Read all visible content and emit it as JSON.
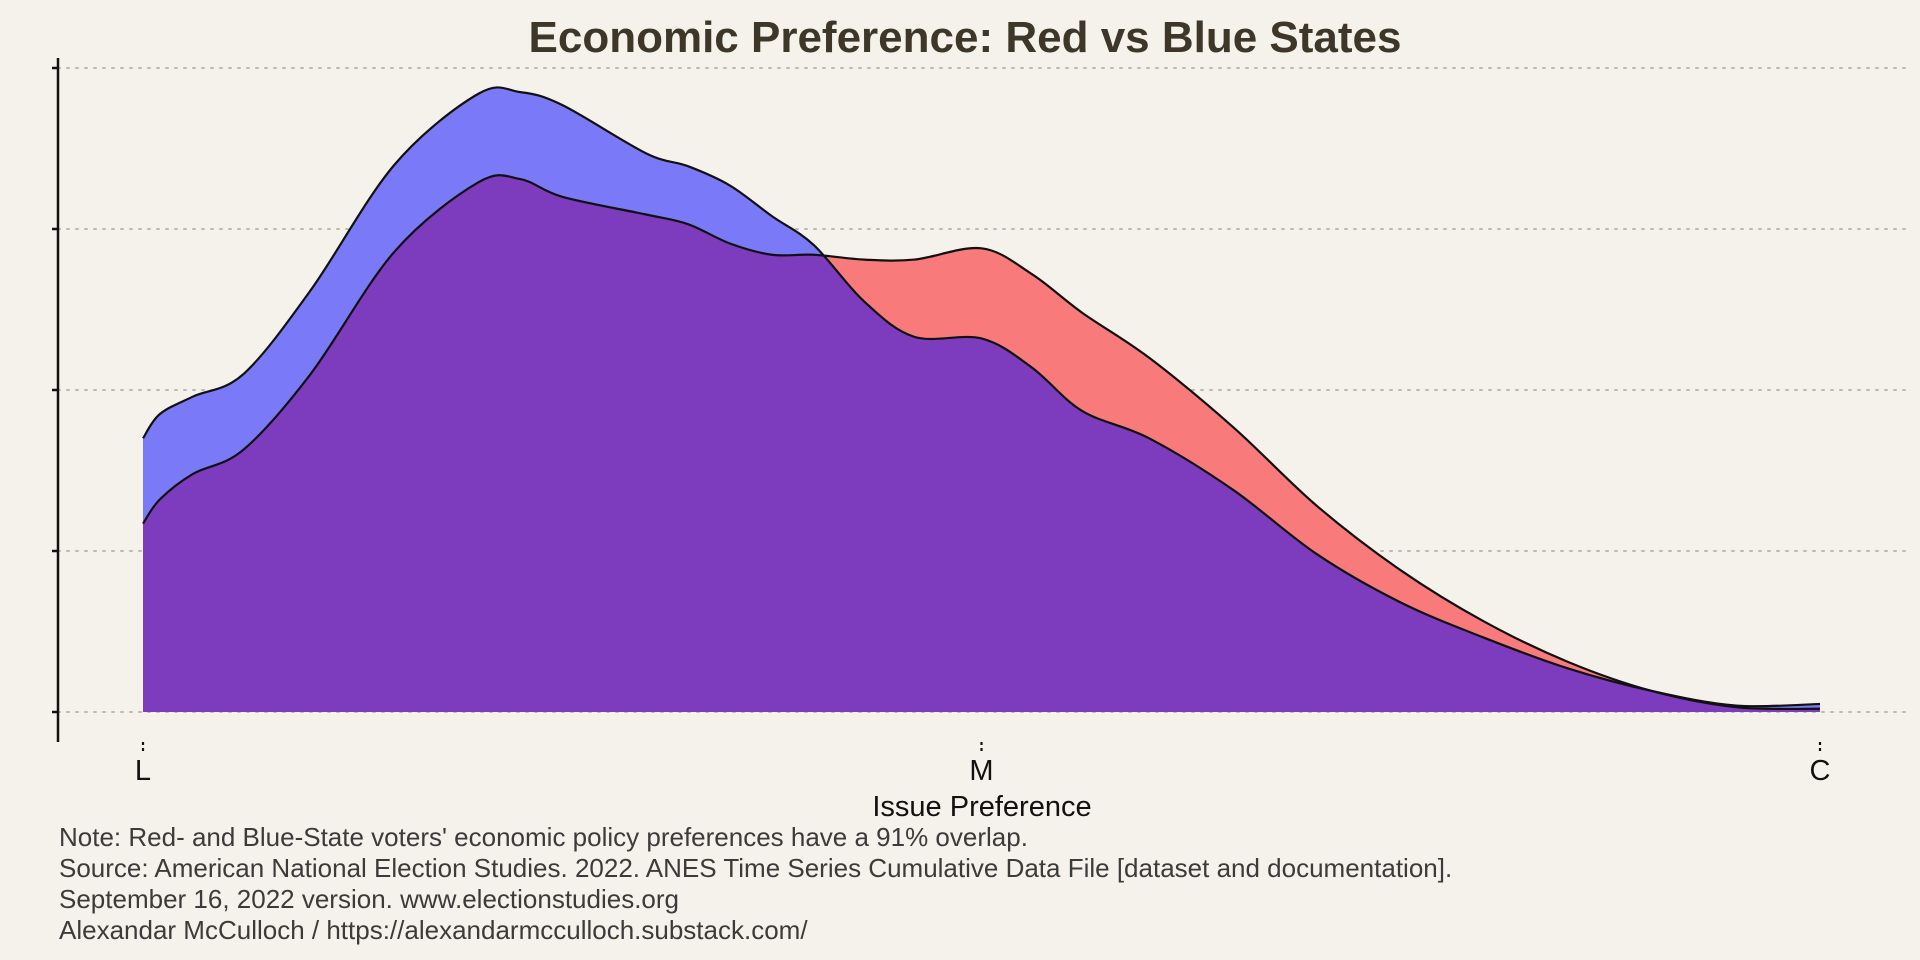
{
  "chart_data": {
    "type": "area",
    "title": "Economic Preference: Red vs Blue States",
    "xlabel": "Issue Preference",
    "ylabel": "",
    "x_tick_labels": [
      "L",
      "M",
      "C"
    ],
    "x_tick_positions": [
      0,
      0.5,
      1
    ],
    "xlim": [
      0,
      1
    ],
    "ylim": [
      0,
      4
    ],
    "y_ticks": [
      0,
      1,
      2,
      3,
      4
    ],
    "grid": {
      "horizontal": true,
      "style": "dotted"
    },
    "series": [
      {
        "color": "#f87a7a",
        "x": [
          0,
          0.01,
          0.03,
          0.06,
          0.1,
          0.15,
          0.2,
          0.225,
          0.25,
          0.3,
          0.325,
          0.35,
          0.375,
          0.4,
          0.43,
          0.46,
          0.5,
          0.53,
          0.56,
          0.6,
          0.65,
          0.7,
          0.75,
          0.8,
          0.85,
          0.9,
          0.95,
          1.0
        ],
        "values": [
          1.17,
          1.32,
          1.48,
          1.63,
          2.1,
          2.86,
          3.29,
          3.31,
          3.2,
          3.09,
          3.03,
          2.91,
          2.84,
          2.84,
          2.81,
          2.81,
          2.88,
          2.72,
          2.48,
          2.2,
          1.77,
          1.28,
          0.88,
          0.56,
          0.31,
          0.13,
          0.03,
          0.02
        ]
      },
      {
        "color": "#7a7af8",
        "x": [
          0,
          0.01,
          0.03,
          0.06,
          0.1,
          0.15,
          0.2,
          0.225,
          0.25,
          0.3,
          0.325,
          0.35,
          0.375,
          0.4,
          0.43,
          0.46,
          0.5,
          0.53,
          0.56,
          0.6,
          0.65,
          0.7,
          0.75,
          0.8,
          0.85,
          0.9,
          0.95,
          1.0
        ],
        "values": [
          1.7,
          1.85,
          1.96,
          2.1,
          2.62,
          3.4,
          3.84,
          3.85,
          3.77,
          3.47,
          3.39,
          3.27,
          3.08,
          2.9,
          2.55,
          2.33,
          2.32,
          2.14,
          1.87,
          1.7,
          1.38,
          0.98,
          0.68,
          0.46,
          0.27,
          0.13,
          0.04,
          0.05
        ]
      }
    ],
    "overlap_color": "#7d3bbd",
    "notes": [
      "Note: Red- and Blue-State voters' economic policy preferences have a 91% overlap.",
      "Source: American National Election Studies. 2022. ANES Time Series Cumulative Data File [dataset and documentation].",
      "September 16, 2022 version. www.electionstudies.org",
      "Alexandar McCulloch / https://alexandarmcculloch.substack.com/"
    ]
  }
}
